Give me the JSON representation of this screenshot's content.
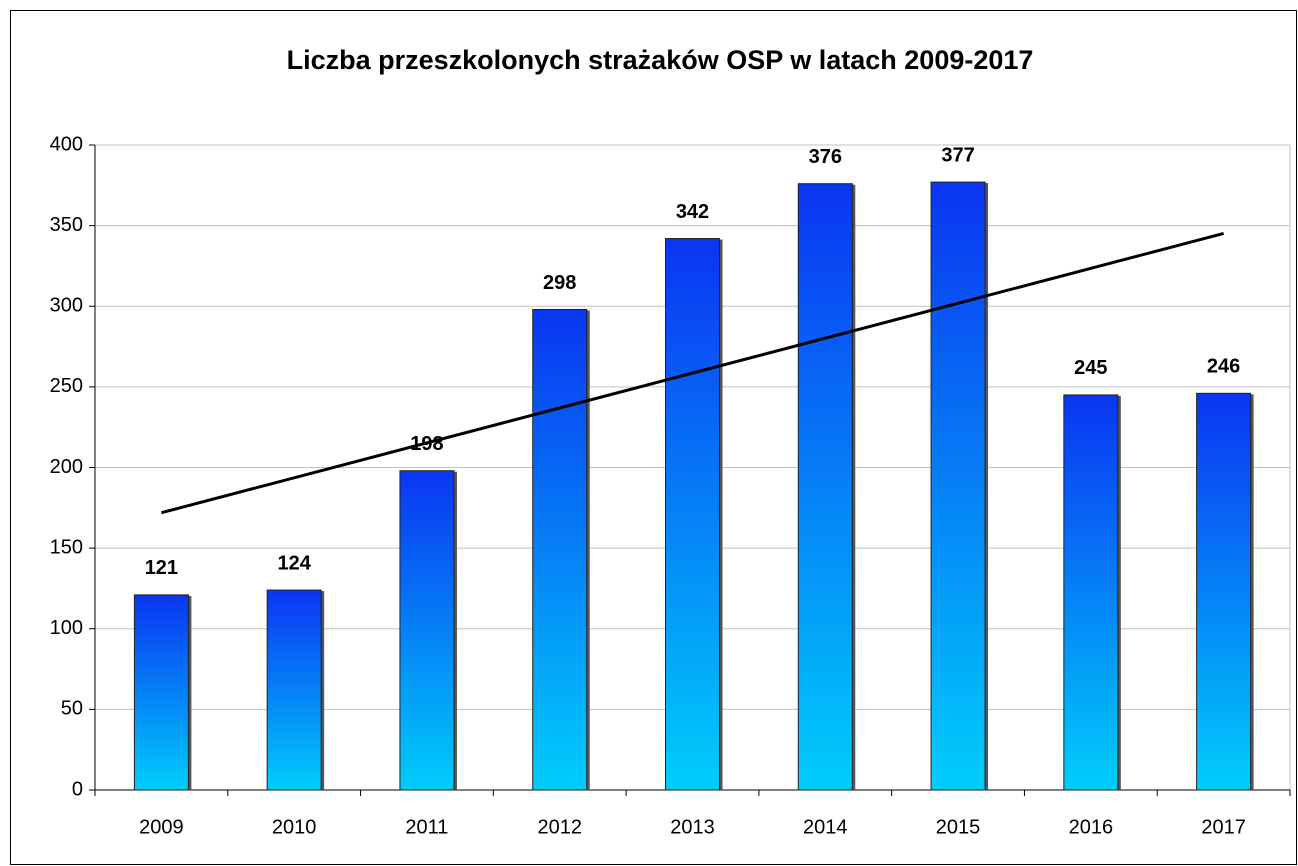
{
  "chart_data": {
    "type": "bar",
    "title": "Liczba przeszkolonych strażaków OSP w latach 2009-2017",
    "categories": [
      "2009",
      "2010",
      "2011",
      "2012",
      "2013",
      "2014",
      "2015",
      "2016",
      "2017"
    ],
    "values": [
      121,
      124,
      198,
      298,
      342,
      376,
      377,
      245,
      246
    ],
    "color": [
      "#0b35f2",
      "#00cdfb"
    ],
    "trendline": true,
    "trendline_color": "#000000",
    "ylim": [
      0,
      400
    ],
    "yticks": [
      0,
      50,
      100,
      150,
      200,
      250,
      300,
      350,
      400
    ],
    "grid": true
  }
}
